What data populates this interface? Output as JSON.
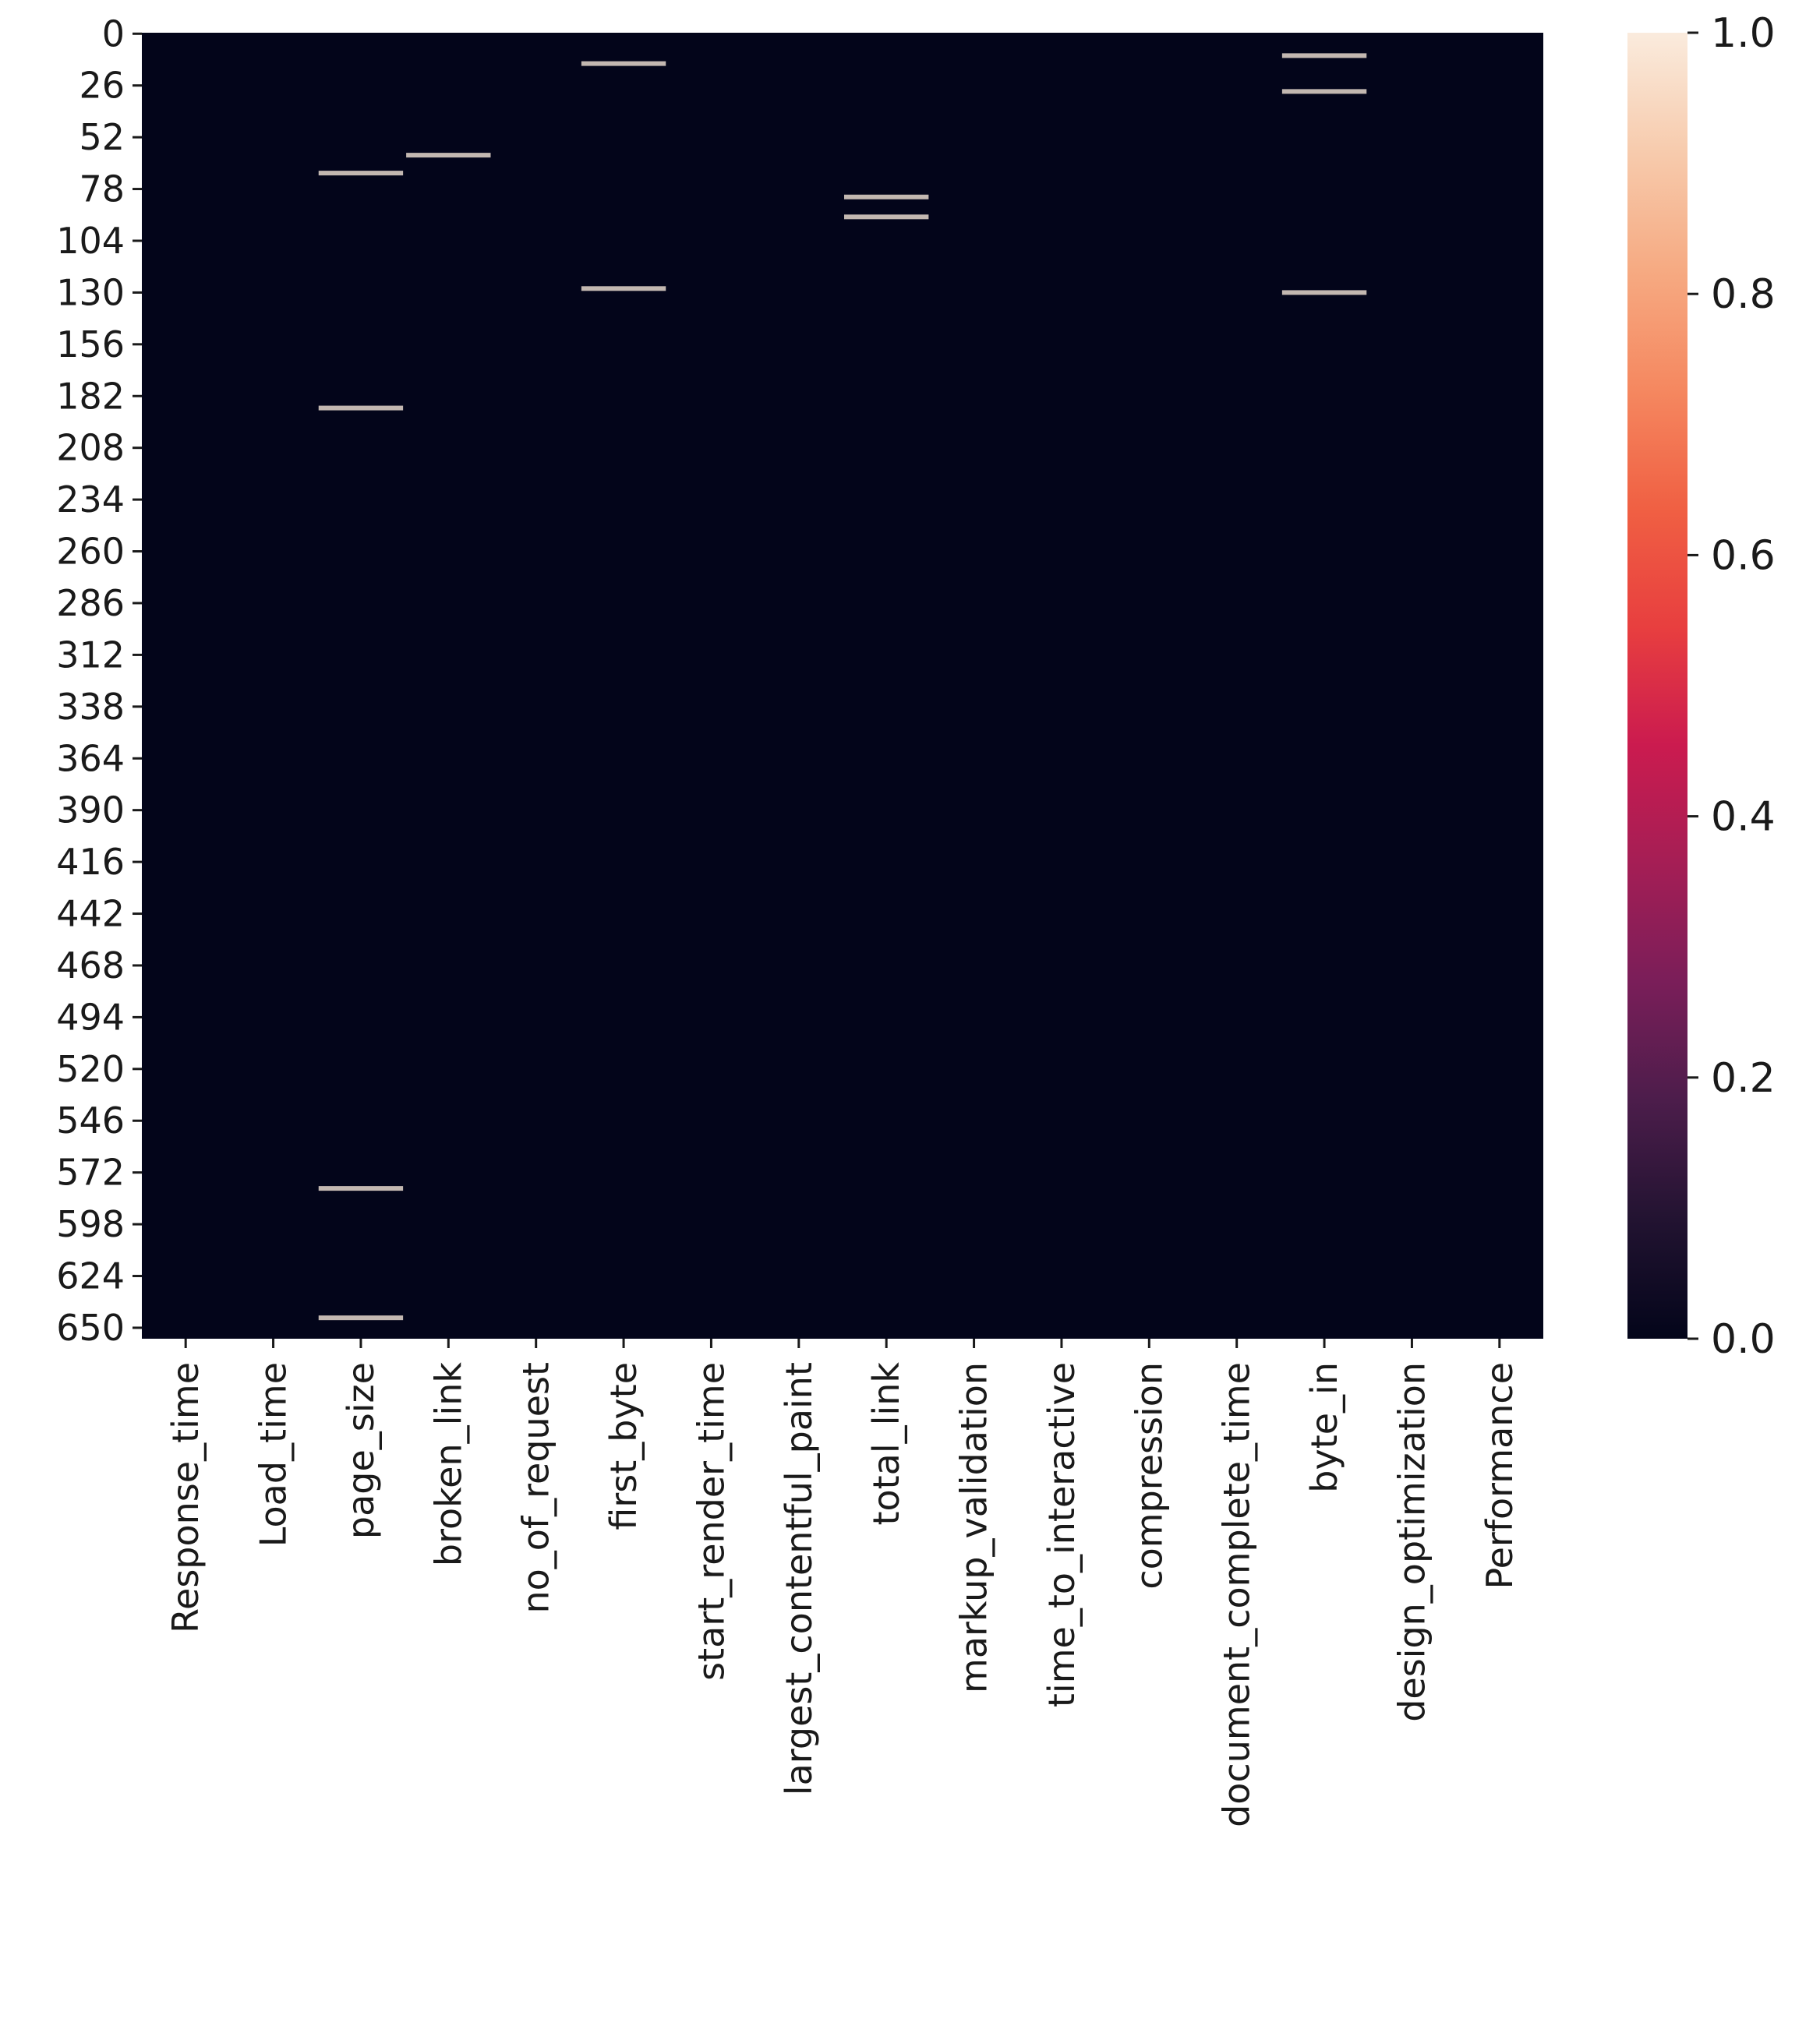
{
  "chart_data": {
    "type": "heatmap",
    "title": "",
    "xlabel": "",
    "ylabel": "",
    "columns": [
      "Response_time",
      "Load_time",
      "page_size",
      "broken_link",
      "no_of_request",
      "first_byte",
      "start_render_time",
      "largest_contentful_paint",
      "total_link",
      "markup_validation",
      "time_to_interactive",
      "compression",
      "document_complete_time",
      "byte_in",
      "design_optimization",
      "Performance"
    ],
    "row_tick_labels": [
      "0",
      "26",
      "52",
      "78",
      "104",
      "130",
      "156",
      "182",
      "208",
      "234",
      "260",
      "286",
      "312",
      "338",
      "364",
      "390",
      "416",
      "442",
      "468",
      "494",
      "520",
      "546",
      "572",
      "598",
      "624",
      "650"
    ],
    "row_range": [
      0,
      650
    ],
    "value_range": [
      0,
      1
    ],
    "missing_cells": [
      {
        "column": "page_size",
        "row": 70
      },
      {
        "column": "page_size",
        "row": 188
      },
      {
        "column": "page_size",
        "row": 580
      },
      {
        "column": "page_size",
        "row": 645
      },
      {
        "column": "broken_link",
        "row": 61
      },
      {
        "column": "first_byte",
        "row": 15
      },
      {
        "column": "first_byte",
        "row": 128
      },
      {
        "column": "total_link",
        "row": 82
      },
      {
        "column": "total_link",
        "row": 92
      },
      {
        "column": "byte_in",
        "row": 11
      },
      {
        "column": "byte_in",
        "row": 29
      },
      {
        "column": "byte_in",
        "row": 130
      }
    ],
    "colorbar": {
      "ticks": [
        "0.0",
        "0.2",
        "0.4",
        "0.6",
        "0.8",
        "1.0"
      ],
      "range": [
        0,
        1
      ],
      "colors": [
        "#03051a",
        "#221331",
        "#4c1d4b",
        "#7a1e59",
        "#a51e55",
        "#cb1b4f",
        "#e83f3f",
        "#f06043",
        "#f58860",
        "#f6aa82",
        "#f7cbad",
        "#faebdd"
      ]
    },
    "cell_color_zero": "#03051a",
    "cell_color_one": "#faebdd",
    "grid": false
  }
}
